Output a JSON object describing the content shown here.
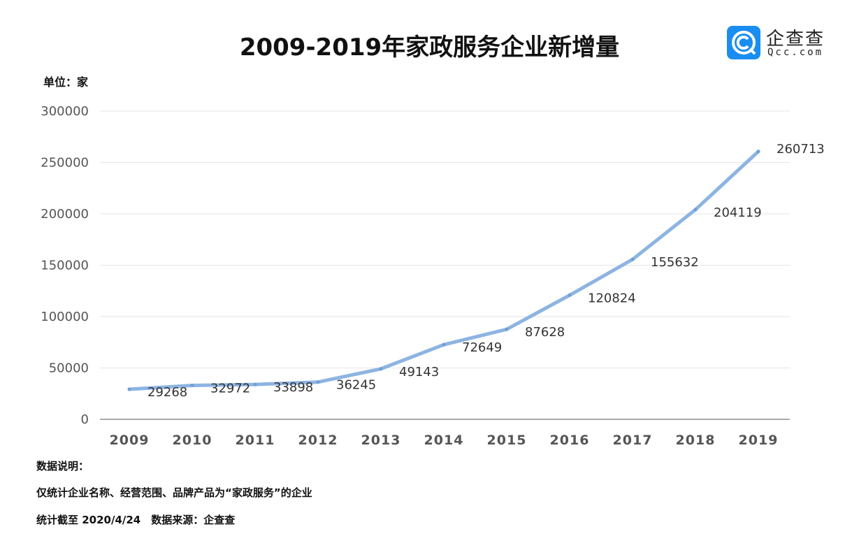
{
  "chart_data": {
    "type": "line",
    "title": "2009-2019年家政服务企业新增量",
    "ylabel": "单位：家",
    "xlabel": "",
    "categories": [
      "2009",
      "2010",
      "2011",
      "2012",
      "2013",
      "2014",
      "2015",
      "2016",
      "2017",
      "2018",
      "2019"
    ],
    "values": [
      29268,
      32972,
      33898,
      36245,
      49143,
      72649,
      87628,
      120824,
      155632,
      204119,
      260713
    ],
    "ylim": [
      0,
      300000
    ],
    "yticks": [
      0,
      50000,
      100000,
      150000,
      200000,
      250000,
      300000
    ],
    "grid": true,
    "line_color": "#8db4e2",
    "data_labels": true
  },
  "logo": {
    "cn": "企查查",
    "en": "Qcc.com",
    "color": "#1a8df0"
  },
  "notes": {
    "heading": "数据说明：",
    "line1": "仅统计企业名称、经营范围、品牌产品为“家政服务”的企业",
    "line2": "统计截至 2020/4/24　数据来源：企查查"
  }
}
